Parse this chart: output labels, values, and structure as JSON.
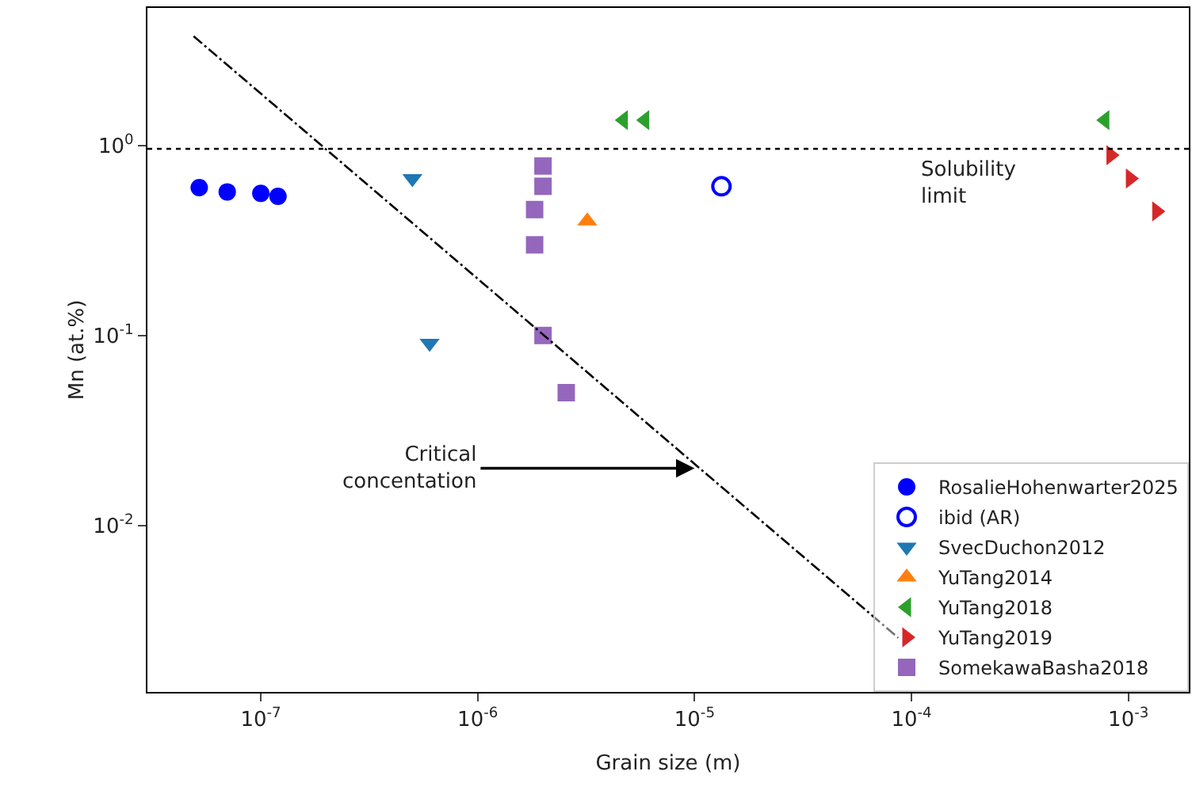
{
  "chart_data": {
    "type": "scatter",
    "xlabel": "Grain size (m)",
    "ylabel": "Mn (at.%)",
    "log": "xy",
    "grid": false,
    "legend": "bottom right",
    "xlim": [
      3e-08,
      0.0019
    ],
    "ylim": [
      0.00133,
      5.3
    ],
    "xticks": [
      {
        "value": 1e-07,
        "label": "10$^{-7}$"
      },
      {
        "value": 1e-06,
        "label": "10$^{-6}$"
      },
      {
        "value": 1e-05,
        "label": "10$^{-5}$"
      },
      {
        "value": 0.0001,
        "label": "10$^{-4}$"
      },
      {
        "value": 0.001,
        "label": "10$^{-3}$"
      }
    ],
    "yticks": [
      {
        "value": 0.01,
        "label": "10$^{-2}$"
      },
      {
        "value": 0.1,
        "label": "10$^{-1}$"
      },
      {
        "value": 1,
        "label": "10$^{0}$"
      }
    ],
    "series": [
      {
        "name": "RosalieHohenwarter2025",
        "color": "#0000ff",
        "marker": "circle",
        "x": [
          5.2e-08,
          7e-08,
          1e-07,
          1.2e-07
        ],
        "values": [
          0.6,
          0.57,
          0.56,
          0.54
        ]
      },
      {
        "name": "ibid (AR)",
        "color": "#0000ff",
        "marker": "circle-open",
        "x": [
          1.33e-05
        ],
        "values": [
          0.61
        ]
      },
      {
        "name": "SvecDuchon2012",
        "color": "#1f77b4",
        "marker": "triangle-down",
        "x": [
          5e-07,
          6e-07
        ],
        "values": [
          0.67,
          0.091
        ]
      },
      {
        "name": "YuTang2014",
        "color": "#ff7f0e",
        "marker": "triangle-up",
        "x": [
          3.2e-06
        ],
        "values": [
          0.4
        ]
      },
      {
        "name": "YuTang2018",
        "color": "#2ca02c",
        "marker": "triangle-left",
        "x": [
          4.7e-06,
          5.9e-06,
          0.00078
        ],
        "values": [
          1.36,
          1.36,
          1.36
        ]
      },
      {
        "name": "YuTang2019",
        "color": "#d62728",
        "marker": "triangle-right",
        "x": [
          0.00083,
          0.00102,
          0.00135
        ],
        "values": [
          0.89,
          0.67,
          0.45
        ]
      },
      {
        "name": "SomekawaBasha2018",
        "color": "#9467bd",
        "marker": "square",
        "x": [
          2e-06,
          2e-06,
          1.83e-06,
          1.83e-06,
          2e-06,
          2.56e-06
        ],
        "values": [
          0.78,
          0.61,
          0.46,
          0.3,
          0.1,
          0.05
        ]
      },
      {
        "type": "line",
        "color": "#000000",
        "line_style": "dashdot",
        "marker": "none",
        "x": [
          4.9e-08,
          8.7e-05
        ],
        "values": [
          3.76,
          0.00256
        ]
      }
    ],
    "ref_lines": [
      {
        "axis": "y",
        "value": 0.96,
        "label": "Solubility\nlimit",
        "color": "#000000",
        "line_style": "dotted"
      }
    ],
    "annotations": [
      {
        "text": "Critical\nconcentation",
        "x": 1e-05,
        "y": 0.02
      }
    ]
  }
}
